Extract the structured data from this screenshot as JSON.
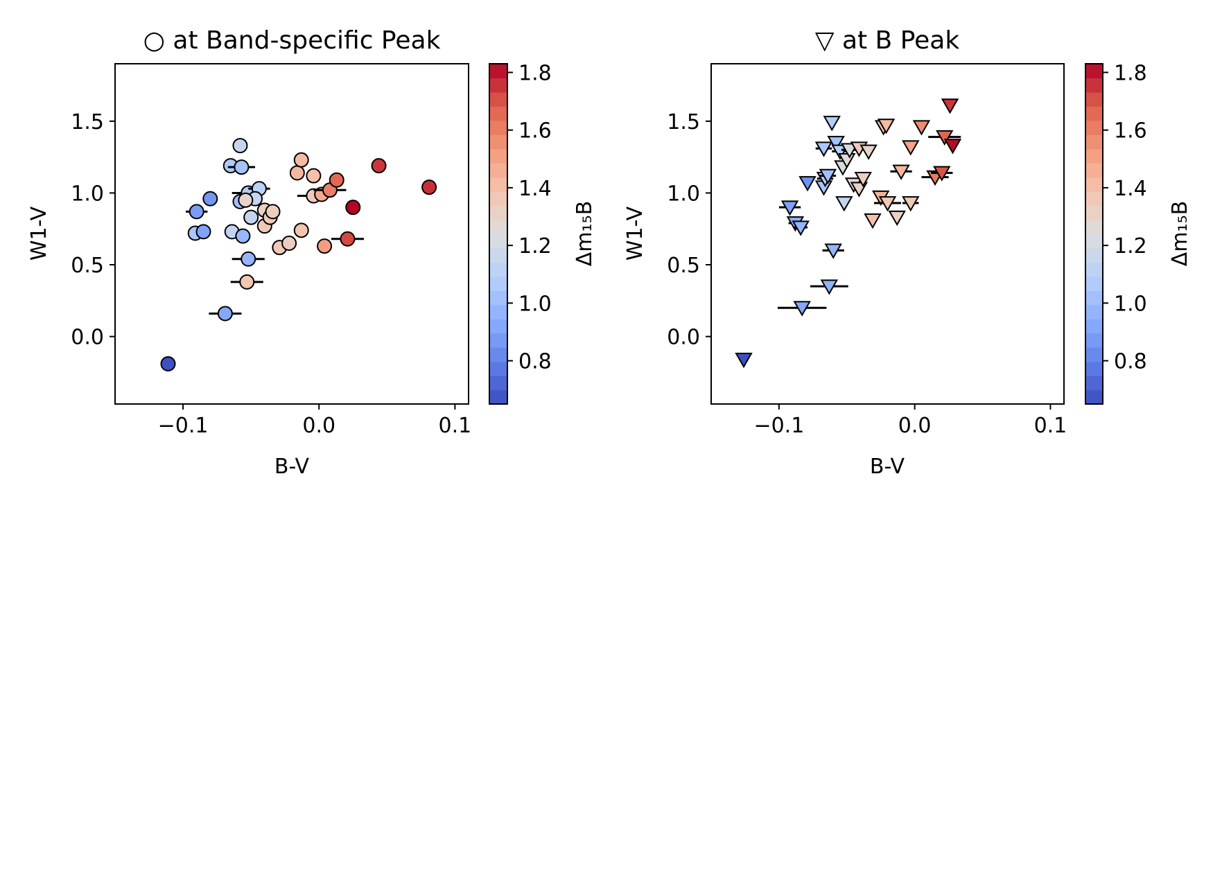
{
  "chart_data": [
    {
      "type": "scatter",
      "title": "○ at Band-specific Peak",
      "xlabel": "B-V",
      "ylabel": "W1-V",
      "xlim": [
        -0.15,
        0.11
      ],
      "ylim": [
        -0.47,
        1.9
      ],
      "xticks": [
        -0.1,
        0.0,
        0.1
      ],
      "xtick_labels": [
        "−0.1",
        "0.0",
        "0.1"
      ],
      "yticks": [
        0.0,
        0.5,
        1.0,
        1.5
      ],
      "ytick_labels": [
        "0.0",
        "0.5",
        "1.0",
        "1.5"
      ],
      "marker": "circle",
      "grid": false,
      "colorbar": {
        "label": "Δm₁₅B",
        "colormap": "coolwarm",
        "range": [
          0.65,
          1.83
        ],
        "ticks": [
          0.8,
          1.0,
          1.2,
          1.4,
          1.6,
          1.8
        ],
        "tick_labels": [
          "0.8",
          "1.0",
          "1.2",
          "1.4",
          "1.6",
          "1.8"
        ]
      },
      "points": [
        {
          "x": -0.111,
          "y": -0.19,
          "c": 0.66,
          "xerr": 0
        },
        {
          "x": -0.069,
          "y": 0.16,
          "c": 0.92,
          "xerr": 0.012
        },
        {
          "x": -0.053,
          "y": 0.38,
          "c": 1.38,
          "xerr": 0.012
        },
        {
          "x": -0.052,
          "y": 0.54,
          "c": 0.97,
          "xerr": 0.012
        },
        {
          "x": -0.091,
          "y": 0.72,
          "c": 1.05,
          "xerr": 0
        },
        {
          "x": -0.085,
          "y": 0.73,
          "c": 0.9,
          "xerr": 0
        },
        {
          "x": -0.09,
          "y": 0.87,
          "c": 0.88,
          "xerr": 0.008
        },
        {
          "x": -0.08,
          "y": 0.96,
          "c": 0.86,
          "xerr": 0
        },
        {
          "x": -0.064,
          "y": 0.73,
          "c": 1.13,
          "xerr": 0
        },
        {
          "x": -0.056,
          "y": 0.7,
          "c": 0.98,
          "xerr": 0
        },
        {
          "x": -0.058,
          "y": 0.94,
          "c": 1.02,
          "xerr": 0
        },
        {
          "x": -0.052,
          "y": 1.0,
          "c": 1.06,
          "xerr": 0.012
        },
        {
          "x": -0.044,
          "y": 1.03,
          "c": 1.1,
          "xerr": 0.008
        },
        {
          "x": -0.047,
          "y": 0.96,
          "c": 1.15,
          "xerr": 0
        },
        {
          "x": -0.05,
          "y": 0.83,
          "c": 1.14,
          "xerr": 0
        },
        {
          "x": -0.054,
          "y": 0.95,
          "c": 1.3,
          "xerr": 0
        },
        {
          "x": -0.065,
          "y": 1.19,
          "c": 1.06,
          "xerr": 0
        },
        {
          "x": -0.057,
          "y": 1.18,
          "c": 1.03,
          "xerr": 0.01
        },
        {
          "x": -0.058,
          "y": 1.33,
          "c": 1.15,
          "xerr": 0
        },
        {
          "x": -0.04,
          "y": 0.77,
          "c": 1.35,
          "xerr": 0
        },
        {
          "x": -0.04,
          "y": 0.88,
          "c": 1.32,
          "xerr": 0
        },
        {
          "x": -0.036,
          "y": 0.83,
          "c": 1.36,
          "xerr": 0
        },
        {
          "x": -0.034,
          "y": 0.87,
          "c": 1.33,
          "xerr": 0
        },
        {
          "x": -0.029,
          "y": 0.62,
          "c": 1.36,
          "xerr": 0
        },
        {
          "x": -0.022,
          "y": 0.65,
          "c": 1.33,
          "xerr": 0
        },
        {
          "x": -0.013,
          "y": 0.74,
          "c": 1.38,
          "xerr": 0
        },
        {
          "x": -0.016,
          "y": 1.14,
          "c": 1.43,
          "xerr": 0
        },
        {
          "x": -0.013,
          "y": 1.23,
          "c": 1.42,
          "xerr": 0
        },
        {
          "x": -0.004,
          "y": 0.98,
          "c": 1.35,
          "xerr": 0.012
        },
        {
          "x": -0.004,
          "y": 1.12,
          "c": 1.4,
          "xerr": 0
        },
        {
          "x": 0.002,
          "y": 0.99,
          "c": 1.48,
          "xerr": 0
        },
        {
          "x": 0.004,
          "y": 0.63,
          "c": 1.52,
          "xerr": 0
        },
        {
          "x": 0.008,
          "y": 1.02,
          "c": 1.6,
          "xerr": 0.012
        },
        {
          "x": 0.013,
          "y": 1.09,
          "c": 1.66,
          "xerr": 0
        },
        {
          "x": 0.021,
          "y": 0.68,
          "c": 1.72,
          "xerr": 0.012
        },
        {
          "x": 0.025,
          "y": 0.9,
          "c": 1.83,
          "xerr": 0
        },
        {
          "x": 0.044,
          "y": 1.19,
          "c": 1.75,
          "xerr": 0
        },
        {
          "x": 0.081,
          "y": 1.04,
          "c": 1.76,
          "xerr": 0
        }
      ]
    },
    {
      "type": "scatter",
      "title": "▽ at B Peak",
      "xlabel": "B-V",
      "ylabel": "W1-V",
      "xlim": [
        -0.15,
        0.11
      ],
      "ylim": [
        -0.47,
        1.9
      ],
      "xticks": [
        -0.1,
        0.0,
        0.1
      ],
      "xtick_labels": [
        "−0.1",
        "0.0",
        "0.1"
      ],
      "yticks": [
        0.0,
        0.5,
        1.0,
        1.5
      ],
      "ytick_labels": [
        "0.0",
        "0.5",
        "1.0",
        "1.5"
      ],
      "marker": "triangle-down",
      "grid": false,
      "colorbar": {
        "label": "Δm₁₅B",
        "colormap": "coolwarm",
        "range": [
          0.65,
          1.83
        ],
        "ticks": [
          0.8,
          1.0,
          1.2,
          1.4,
          1.6,
          1.8
        ],
        "tick_labels": [
          "0.8",
          "1.0",
          "1.2",
          "1.4",
          "1.6",
          "1.8"
        ]
      },
      "points": [
        {
          "x": -0.126,
          "y": -0.16,
          "c": 0.66,
          "xerr": 0
        },
        {
          "x": -0.083,
          "y": 0.2,
          "c": 0.92,
          "xerr": 0.018
        },
        {
          "x": -0.063,
          "y": 0.35,
          "c": 0.96,
          "xerr": 0.014
        },
        {
          "x": -0.06,
          "y": 0.6,
          "c": 0.97,
          "xerr": 0.008
        },
        {
          "x": -0.092,
          "y": 0.9,
          "c": 0.9,
          "xerr": 0.008
        },
        {
          "x": -0.088,
          "y": 0.79,
          "c": 0.95,
          "xerr": 0.005
        },
        {
          "x": -0.084,
          "y": 0.76,
          "c": 0.97,
          "xerr": 0.005
        },
        {
          "x": -0.079,
          "y": 1.07,
          "c": 0.85,
          "xerr": 0
        },
        {
          "x": -0.067,
          "y": 1.04,
          "c": 1.04,
          "xerr": 0
        },
        {
          "x": -0.066,
          "y": 1.1,
          "c": 1.08,
          "xerr": 0.006
        },
        {
          "x": -0.064,
          "y": 1.12,
          "c": 1.02,
          "xerr": 0.006
        },
        {
          "x": -0.067,
          "y": 1.31,
          "c": 1.05,
          "xerr": 0.006
        },
        {
          "x": -0.061,
          "y": 1.49,
          "c": 1.08,
          "xerr": 0
        },
        {
          "x": -0.058,
          "y": 1.35,
          "c": 1.03,
          "xerr": 0
        },
        {
          "x": -0.055,
          "y": 1.29,
          "c": 1.1,
          "xerr": 0.006
        },
        {
          "x": -0.053,
          "y": 1.18,
          "c": 1.22,
          "xerr": 0
        },
        {
          "x": -0.05,
          "y": 1.23,
          "c": 1.25,
          "xerr": 0
        },
        {
          "x": -0.048,
          "y": 1.3,
          "c": 1.22,
          "xerr": 0.006
        },
        {
          "x": -0.052,
          "y": 0.93,
          "c": 1.15,
          "xerr": 0
        },
        {
          "x": -0.045,
          "y": 1.06,
          "c": 1.27,
          "xerr": 0
        },
        {
          "x": -0.041,
          "y": 1.03,
          "c": 1.3,
          "xerr": 0
        },
        {
          "x": -0.038,
          "y": 1.1,
          "c": 1.33,
          "xerr": 0
        },
        {
          "x": -0.041,
          "y": 1.31,
          "c": 1.35,
          "xerr": 0
        },
        {
          "x": -0.034,
          "y": 1.29,
          "c": 1.3,
          "xerr": 0
        },
        {
          "x": -0.031,
          "y": 0.81,
          "c": 1.4,
          "xerr": 0
        },
        {
          "x": -0.025,
          "y": 0.97,
          "c": 1.45,
          "xerr": 0
        },
        {
          "x": -0.02,
          "y": 0.93,
          "c": 1.36,
          "xerr": 0.01
        },
        {
          "x": -0.023,
          "y": 1.46,
          "c": 1.4,
          "xerr": 0
        },
        {
          "x": -0.021,
          "y": 1.47,
          "c": 1.42,
          "xerr": 0
        },
        {
          "x": -0.013,
          "y": 0.83,
          "c": 1.32,
          "xerr": 0
        },
        {
          "x": -0.01,
          "y": 1.15,
          "c": 1.43,
          "xerr": 0.008
        },
        {
          "x": -0.003,
          "y": 0.93,
          "c": 1.35,
          "xerr": 0.006
        },
        {
          "x": -0.003,
          "y": 1.32,
          "c": 1.5,
          "xerr": 0
        },
        {
          "x": 0.005,
          "y": 1.46,
          "c": 1.57,
          "xerr": 0
        },
        {
          "x": 0.015,
          "y": 1.11,
          "c": 1.62,
          "xerr": 0.01
        },
        {
          "x": 0.02,
          "y": 1.14,
          "c": 1.7,
          "xerr": 0.008
        },
        {
          "x": 0.022,
          "y": 1.39,
          "c": 1.67,
          "xerr": 0.012
        },
        {
          "x": 0.026,
          "y": 1.61,
          "c": 1.75,
          "xerr": 0
        },
        {
          "x": 0.028,
          "y": 1.33,
          "c": 1.82,
          "xerr": 0
        }
      ]
    }
  ]
}
